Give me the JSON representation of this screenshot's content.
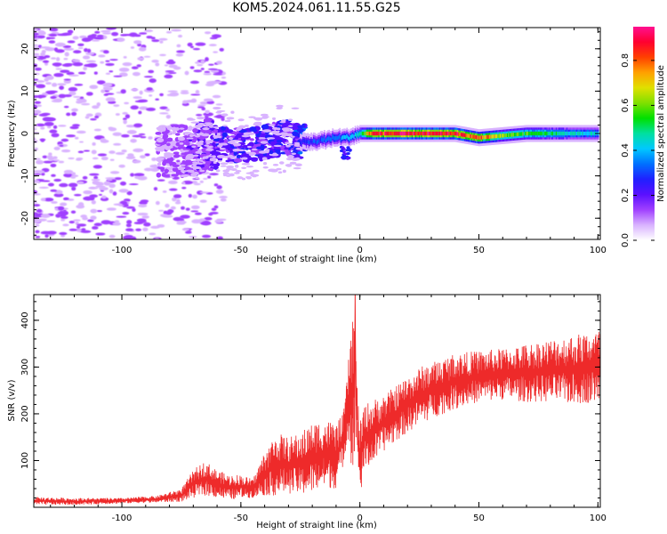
{
  "title": "KOM5.2024.061.11.55.G25",
  "colors": {
    "snr_line": "#ee2a2a",
    "colorbar": [
      "#ffffff",
      "#d9b3ff",
      "#a040ff",
      "#5a10ff",
      "#2020ff",
      "#0070ff",
      "#00c8ff",
      "#00e0a0",
      "#00e000",
      "#80e000",
      "#e0e000",
      "#ffa000",
      "#ff4000",
      "#ff0030",
      "#ff1090"
    ]
  },
  "chart_data": [
    {
      "type": "heatmap",
      "xlabel": "Height of straight line (km)",
      "ylabel": "Frequency (Hz)",
      "xlim": [
        -137,
        101
      ],
      "ylim": [
        -25,
        25
      ],
      "xticks": [
        -100,
        -50,
        0,
        50,
        100
      ],
      "xtick_labels": [
        "-100",
        "-50",
        "0",
        "50",
        "100"
      ],
      "yticks": [
        -20,
        -10,
        0,
        10,
        20
      ],
      "ytick_labels": [
        "-20",
        "-10",
        "0",
        "10",
        "20"
      ],
      "grid": false,
      "colorbar": {
        "label": "Normalized spectral amplitude",
        "range": [
          0,
          0.95
        ],
        "ticks": [
          0.0,
          0.2,
          0.4,
          0.6,
          0.8
        ],
        "tick_labels": [
          "0.0",
          "0.2",
          "0.4",
          "0.6",
          "0.8"
        ]
      },
      "ridge": {
        "x": [
          -80,
          -70,
          -60,
          -50,
          -40,
          -30,
          -25,
          -20,
          -10,
          -5,
          0,
          5,
          20,
          40,
          50,
          60,
          70,
          80,
          90,
          100
        ],
        "freq": [
          -4,
          -4,
          -2,
          -3,
          -2,
          -1,
          -2,
          -2,
          -1,
          -1,
          0,
          0,
          0,
          0,
          -1,
          -0.5,
          0,
          0,
          0,
          0
        ],
        "amplitude": [
          0.12,
          0.14,
          0.2,
          0.22,
          0.24,
          0.2,
          0.26,
          0.3,
          0.35,
          0.4,
          0.45,
          0.85,
          0.88,
          0.85,
          0.8,
          0.62,
          0.55,
          0.5,
          0.45,
          0.4
        ]
      }
    },
    {
      "type": "line",
      "xlabel": "Height of straight line (km)",
      "ylabel": "SNR (v/v)",
      "xlim": [
        -137,
        101
      ],
      "ylim": [
        0,
        455
      ],
      "xticks": [
        -100,
        -50,
        0,
        50,
        100
      ],
      "xtick_labels": [
        "-100",
        "-50",
        "0",
        "50",
        "100"
      ],
      "yticks": [
        100,
        200,
        300,
        400
      ],
      "ytick_labels": [
        "100",
        "200",
        "300",
        "400"
      ],
      "grid": false,
      "series": [
        {
          "x": [
            -137,
            -120,
            -100,
            -85,
            -75,
            -70,
            -65,
            -60,
            -55,
            -50,
            -45,
            -40,
            -35,
            -30,
            -25,
            -20,
            -15,
            -10,
            -7,
            -5,
            -3,
            -2,
            -1,
            0,
            2,
            5,
            10,
            15,
            20,
            25,
            30,
            35,
            40,
            50,
            60,
            70,
            80,
            90,
            100
          ],
          "lower": [
            5,
            5,
            8,
            10,
            12,
            20,
            25,
            20,
            15,
            20,
            20,
            25,
            25,
            30,
            25,
            30,
            40,
            40,
            90,
            150,
            60,
            300,
            100,
            20,
            80,
            90,
            120,
            140,
            160,
            175,
            190,
            200,
            210,
            225,
            230,
            225,
            225,
            220,
            225
          ],
          "upper": [
            22,
            20,
            20,
            25,
            40,
            80,
            100,
            80,
            70,
            70,
            60,
            120,
            160,
            150,
            160,
            180,
            190,
            180,
            200,
            300,
            440,
            380,
            240,
            180,
            220,
            230,
            240,
            260,
            280,
            300,
            310,
            320,
            330,
            335,
            340,
            350,
            360,
            370,
            380
          ]
        }
      ]
    }
  ]
}
